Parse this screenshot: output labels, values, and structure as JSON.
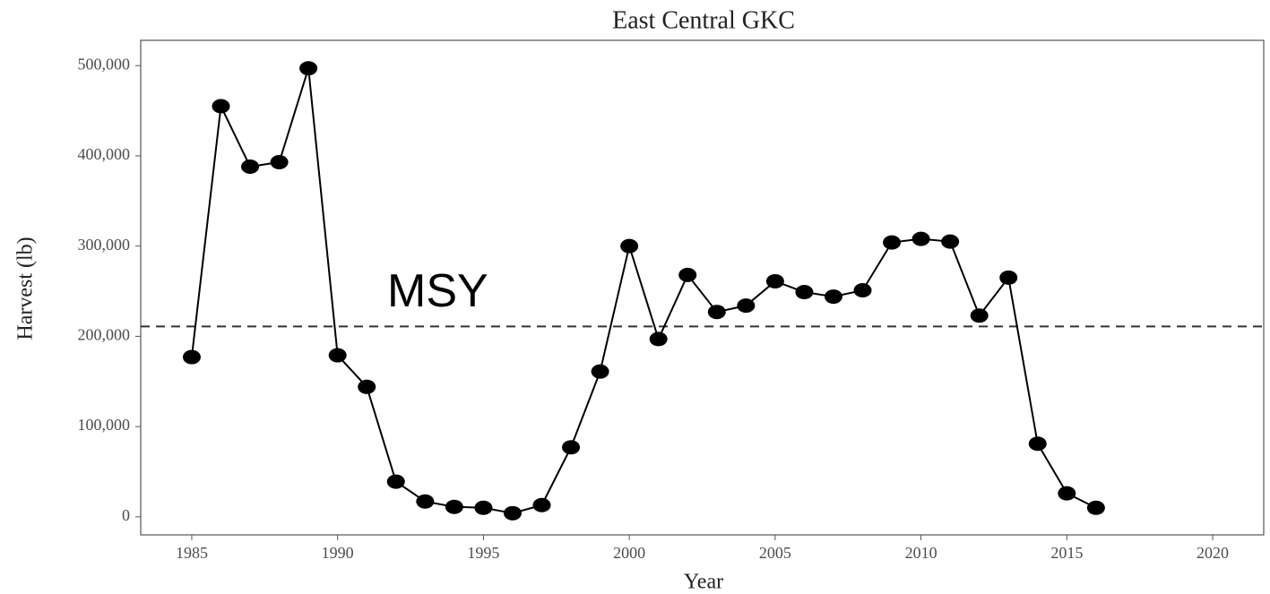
{
  "chart_data": {
    "type": "line",
    "title": "East Central GKC",
    "x_label": "Year",
    "y_label": "Harvest (lb)",
    "x": [
      1985,
      1986,
      1987,
      1988,
      1989,
      1990,
      1991,
      1992,
      1993,
      1994,
      1995,
      1996,
      1997,
      1998,
      1999,
      2000,
      2001,
      2002,
      2003,
      2004,
      2005,
      2006,
      2007,
      2008,
      2009,
      2010,
      2011,
      2012,
      2013,
      2014,
      2015,
      2016
    ],
    "values": [
      177000,
      455000,
      388000,
      393000,
      497000,
      179000,
      144000,
      39000,
      17000,
      11000,
      10000,
      4000,
      13000,
      77000,
      161000,
      300000,
      197000,
      268000,
      227000,
      234000,
      261000,
      249000,
      244000,
      251000,
      304000,
      308000,
      305000,
      223000,
      265000,
      81000,
      26000,
      10000
    ],
    "color": "#000000",
    "xlim": [
      1983.25,
      2021.75
    ],
    "ylim": [
      -20000,
      528000
    ],
    "xticks": [
      1985,
      1990,
      1995,
      2000,
      2005,
      2010,
      2015,
      2020
    ],
    "yticks": [
      0,
      {
        "value": 100000,
        "label": "100,000"
      },
      {
        "value": 200000,
        "label": "200,000"
      },
      {
        "value": 300000,
        "label": "300,000"
      },
      {
        "value": 400000,
        "label": "400,000"
      },
      {
        "value": 500000,
        "label": "500,000"
      }
    ],
    "reference_line": {
      "value": 211000,
      "label": "MSY"
    }
  }
}
